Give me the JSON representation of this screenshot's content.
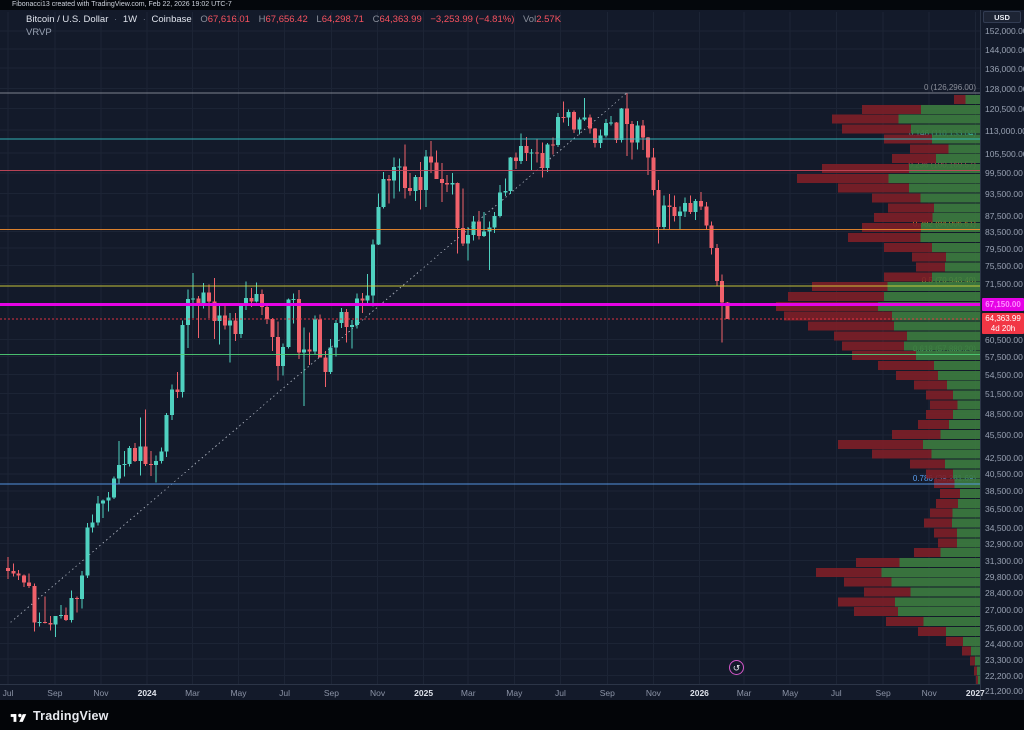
{
  "meta": {
    "title_bar": "Fibonacci13 created with TradingView.com, Feb 22, 2026 19:02 UTC-7"
  },
  "legend": {
    "symbol": "Bitcoin / U.S. Dollar",
    "separator": "·",
    "interval": "1W",
    "exchange": "Coinbase",
    "o_label": "O",
    "o": "67,616.01",
    "h_label": "H",
    "h": "67,656.42",
    "l_label": "L",
    "l": "64,298.71",
    "c_label": "C",
    "c": "64,363.99",
    "change": "−3,253.99 (−4.81%)",
    "vol_label": "Vol",
    "vol": "2.57K",
    "indicator": "VRVP"
  },
  "icons": {
    "replay_icon": "↺"
  },
  "price_axis": {
    "currency": "USD",
    "labels": [
      "152,000.00",
      "144,000.00",
      "136,000.00",
      "128,000.00",
      "120,500.00",
      "113,000.00",
      "105,500.00",
      "99,500.00",
      "93,500.00",
      "87,500.00",
      "83,500.00",
      "79,500.00",
      "75,500.00",
      "71,500.00",
      "60,500.00",
      "57,500.00",
      "54,500.00",
      "51,500.00",
      "48,500.00",
      "45,500.00",
      "42,500.00",
      "40,500.00",
      "38,500.00",
      "36,500.00",
      "34,500.00",
      "32,900.00",
      "31,300.00",
      "29,800.00",
      "28,400.00",
      "27,000.00",
      "25,600.00",
      "24,400.00",
      "23,300.00",
      "22,200.00",
      "21,200.00"
    ]
  },
  "time_axis": {
    "ticks": [
      {
        "label": "Jul",
        "week": 0,
        "year": false
      },
      {
        "label": "Sep",
        "week": 8.86,
        "year": false
      },
      {
        "label": "Nov",
        "week": 17.57,
        "year": false
      },
      {
        "label": "2024",
        "week": 26.29,
        "year": true
      },
      {
        "label": "Mar",
        "week": 34.86,
        "year": false
      },
      {
        "label": "May",
        "week": 43.57,
        "year": false
      },
      {
        "label": "Jul",
        "week": 52.29,
        "year": false
      },
      {
        "label": "Sep",
        "week": 61.14,
        "year": false
      },
      {
        "label": "Nov",
        "week": 69.86,
        "year": false
      },
      {
        "label": "2025",
        "week": 78.57,
        "year": true
      },
      {
        "label": "Mar",
        "week": 87,
        "year": false
      },
      {
        "label": "May",
        "week": 95.71,
        "year": false
      },
      {
        "label": "Jul",
        "week": 104.43,
        "year": false
      },
      {
        "label": "Sep",
        "week": 113.29,
        "year": false
      },
      {
        "label": "Nov",
        "week": 122,
        "year": false
      },
      {
        "label": "2026",
        "week": 130.71,
        "year": true
      },
      {
        "label": "Mar",
        "week": 139.14,
        "year": false
      },
      {
        "label": "May",
        "week": 147.86,
        "year": false
      },
      {
        "label": "Jul",
        "week": 156.57,
        "year": false
      },
      {
        "label": "Sep",
        "week": 165.43,
        "year": false
      },
      {
        "label": "Nov",
        "week": 174.14,
        "year": false
      },
      {
        "label": "2027",
        "week": 182.86,
        "year": true
      }
    ]
  },
  "fib_levels": [
    {
      "level": "0",
      "value": "126,296.00",
      "price": 126296,
      "color": "#8a8e99"
    },
    {
      "level": "0.146",
      "value": "110,133.04",
      "price": 110133.04,
      "color": "#35c2c5"
    },
    {
      "level": "0.236",
      "value": "100,169.57",
      "price": 100169.57,
      "color": "#c9485b"
    },
    {
      "level": "0.382",
      "value": "84,006.61",
      "price": 84006.61,
      "color": "#f08c2e"
    },
    {
      "level": "0.5",
      "value": "70,943.40",
      "price": 70943.4,
      "color": "#d9d43a"
    },
    {
      "level": "0.618",
      "value": "57,880.20",
      "price": 57880.2,
      "color": "#4fd076"
    },
    {
      "level": "0.786",
      "value": "39,281.69",
      "price": 39281.69,
      "color": "#5a9ff2"
    }
  ],
  "drawings": {
    "magenta_line": {
      "price": 67150,
      "label": "67,150.00",
      "color": "#e603e6"
    },
    "trendline": {
      "week1": 0.5,
      "price1": 26000,
      "week2": 117,
      "price2": 126296
    }
  },
  "current_price": {
    "price": 64363.99,
    "label": "64,363.99",
    "countdown": "4d 20h",
    "color": "#f23645"
  },
  "chart_data": {
    "type": "candlestick",
    "title": "Bitcoin / U.S. Dollar",
    "interval": "1W",
    "exchange": "Coinbase",
    "x_start": "2023-07-03",
    "x_step": "1 week",
    "y_scale": "log",
    "ylim": [
      21200,
      152000
    ],
    "ohlc_format": [
      "open",
      "high",
      "low",
      "close"
    ],
    "up_color": "#4fd1c0",
    "down_color": "#f0616b",
    "candles": [
      [
        30600,
        31600,
        29600,
        30300
      ],
      [
        30300,
        31000,
        29800,
        30100
      ],
      [
        30100,
        30400,
        29500,
        29900
      ],
      [
        29900,
        30000,
        28900,
        29300
      ],
      [
        29300,
        30100,
        28800,
        29000
      ],
      [
        29000,
        29200,
        25300,
        26000
      ],
      [
        26000,
        26800,
        25700,
        26050
      ],
      [
        26050,
        28100,
        25900,
        25950
      ],
      [
        25950,
        26500,
        25400,
        25850
      ],
      [
        25850,
        26400,
        24900,
        26500
      ],
      [
        26500,
        27400,
        26300,
        26600
      ],
      [
        26600,
        27200,
        26100,
        26200
      ],
      [
        26200,
        28600,
        26000,
        27950
      ],
      [
        27950,
        28100,
        26800,
        27900
      ],
      [
        27900,
        30300,
        27100,
        29900
      ],
      [
        29900,
        35000,
        29700,
        34500
      ],
      [
        34500,
        35900,
        34000,
        35050
      ],
      [
        35050,
        37900,
        34700,
        37100
      ],
      [
        37100,
        37500,
        35500,
        37400
      ],
      [
        37400,
        38400,
        36200,
        37750
      ],
      [
        37750,
        40200,
        37600,
        39950
      ],
      [
        39950,
        44700,
        39300,
        41600
      ],
      [
        41600,
        43400,
        40200,
        41700
      ],
      [
        41700,
        44000,
        41400,
        43750
      ],
      [
        43750,
        44400,
        42000,
        42100
      ],
      [
        42100,
        47900,
        40300,
        43950
      ],
      [
        43950,
        49100,
        41500,
        41700
      ],
      [
        41700,
        43400,
        40280,
        41600
      ],
      [
        41600,
        42800,
        39480,
        42120
      ],
      [
        42120,
        43800,
        41800,
        43300
      ],
      [
        43300,
        48600,
        42600,
        48300
      ],
      [
        48300,
        52900,
        47600,
        52100
      ],
      [
        52100,
        54900,
        50800,
        51700
      ],
      [
        51700,
        64000,
        50900,
        63200
      ],
      [
        63200,
        70200,
        59000,
        68300
      ],
      [
        68300,
        73800,
        64500,
        68400
      ],
      [
        68400,
        68900,
        60800,
        67200
      ],
      [
        67200,
        71600,
        66400,
        69600
      ],
      [
        69600,
        71300,
        64550,
        67800
      ],
      [
        67800,
        72700,
        60600,
        63900
      ],
      [
        63900,
        67000,
        59600,
        64950
      ],
      [
        64950,
        67200,
        62300,
        63100
      ],
      [
        63100,
        65500,
        56500,
        64000
      ],
      [
        64000,
        65500,
        60200,
        61500
      ],
      [
        61500,
        67300,
        60800,
        66900
      ],
      [
        66900,
        71900,
        66100,
        68500
      ],
      [
        68500,
        70600,
        66700,
        67800
      ],
      [
        67800,
        71700,
        67600,
        69300
      ],
      [
        69300,
        70200,
        65100,
        66700
      ],
      [
        66700,
        67200,
        63400,
        64300
      ],
      [
        64300,
        64500,
        58500,
        61000
      ],
      [
        61000,
        63800,
        53500,
        55900
      ],
      [
        55900,
        59800,
        54300,
        59200
      ],
      [
        59200,
        68400,
        58900,
        68150
      ],
      [
        68150,
        69400,
        63500,
        68300
      ],
      [
        68300,
        70100,
        57100,
        58200
      ],
      [
        58200,
        62700,
        49600,
        58700
      ],
      [
        58700,
        61800,
        56100,
        58400
      ],
      [
        58400,
        65000,
        57900,
        64200
      ],
      [
        64200,
        65200,
        57700,
        57300
      ],
      [
        57300,
        58500,
        52500,
        54900
      ],
      [
        54900,
        60600,
        54600,
        59100
      ],
      [
        59100,
        64100,
        57500,
        63600
      ],
      [
        63600,
        66500,
        62600,
        65650
      ],
      [
        65650,
        66300,
        60000,
        62800
      ],
      [
        62800,
        64100,
        58900,
        63200
      ],
      [
        63200,
        69400,
        62500,
        68400
      ],
      [
        68400,
        69500,
        65500,
        68000
      ],
      [
        68000,
        73600,
        67500,
        69000
      ],
      [
        69000,
        81500,
        66800,
        80400
      ],
      [
        80400,
        93500,
        80200,
        89900
      ],
      [
        89900,
        99800,
        89400,
        97700
      ],
      [
        97700,
        98900,
        90800,
        97300
      ],
      [
        97300,
        104100,
        92200,
        101200
      ],
      [
        101200,
        103900,
        94150,
        101400
      ],
      [
        101400,
        108300,
        92200,
        95100
      ],
      [
        95100,
        99500,
        93000,
        94300
      ],
      [
        94300,
        98800,
        91500,
        98300
      ],
      [
        98300,
        102700,
        89200,
        94500
      ],
      [
        94500,
        106500,
        89800,
        104500
      ],
      [
        104500,
        109400,
        99500,
        102600
      ],
      [
        102600,
        106300,
        97800,
        97700
      ],
      [
        97700,
        102500,
        91200,
        96500
      ],
      [
        96500,
        98900,
        94000,
        96100
      ],
      [
        96100,
        99500,
        93300,
        96600
      ],
      [
        96600,
        96700,
        78200,
        84400
      ],
      [
        84400,
        95000,
        80000,
        80600
      ],
      [
        80600,
        84700,
        76600,
        82600
      ],
      [
        82600,
        87500,
        81300,
        86100
      ],
      [
        86100,
        88800,
        81600,
        82400
      ],
      [
        82400,
        88500,
        82100,
        83500
      ],
      [
        83500,
        86100,
        74400,
        84500
      ],
      [
        84500,
        88500,
        83100,
        87500
      ],
      [
        87500,
        95900,
        87100,
        93800
      ],
      [
        93800,
        97900,
        92900,
        94300
      ],
      [
        94300,
        104300,
        93400,
        104100
      ],
      [
        104100,
        105800,
        100700,
        103100
      ],
      [
        103100,
        111900,
        102100,
        107800
      ],
      [
        107800,
        110700,
        103100,
        105600
      ],
      [
        105600,
        106800,
        100400,
        105700
      ],
      [
        105700,
        110300,
        102600,
        105500
      ],
      [
        105500,
        108900,
        98200,
        100900
      ],
      [
        100900,
        108800,
        99700,
        108300
      ],
      [
        108300,
        110500,
        105100,
        108200
      ],
      [
        108200,
        118900,
        107500,
        117500
      ],
      [
        117500,
        123200,
        115700,
        117300
      ],
      [
        117300,
        120200,
        114500,
        119400
      ],
      [
        119400,
        119800,
        112000,
        113300
      ],
      [
        113300,
        117400,
        111600,
        116600
      ],
      [
        116600,
        124500,
        116100,
        117400
      ],
      [
        117400,
        118400,
        111900,
        113500
      ],
      [
        113500,
        113800,
        107300,
        108800
      ],
      [
        108800,
        113300,
        107200,
        111200
      ],
      [
        111200,
        116800,
        110600,
        115400
      ],
      [
        115400,
        117900,
        114600,
        115700
      ],
      [
        115700,
        115800,
        108700,
        109700
      ],
      [
        109700,
        120700,
        108900,
        120500
      ],
      [
        120500,
        126296,
        104600,
        115200
      ],
      [
        115200,
        116100,
        103500,
        108900
      ],
      [
        108900,
        116100,
        106700,
        114600
      ],
      [
        114600,
        116500,
        106600,
        110600
      ],
      [
        110600,
        110700,
        98900,
        104100
      ],
      [
        104100,
        107200,
        93000,
        94500
      ],
      [
        94500,
        97400,
        80600,
        84600
      ],
      [
        84600,
        93000,
        83900,
        90300
      ],
      [
        90300,
        93400,
        84200,
        89800
      ],
      [
        89800,
        93000,
        86000,
        87500
      ],
      [
        87500,
        90000,
        84000,
        88600
      ],
      [
        88600,
        92500,
        87200,
        91000
      ],
      [
        91000,
        93000,
        88000,
        88500
      ],
      [
        88500,
        92000,
        86500,
        91500
      ],
      [
        91500,
        94000,
        89000,
        90000
      ],
      [
        90000,
        91200,
        84000,
        85000
      ],
      [
        85000,
        86000,
        78000,
        79500
      ],
      [
        79500,
        80500,
        71000,
        72000
      ],
      [
        72000,
        73500,
        60000,
        67616
      ],
      [
        67616.01,
        67656.42,
        64298.71,
        64363.99
      ]
    ]
  },
  "volume_profile": {
    "name": "VRVP",
    "up_color": "#3c7a3f",
    "down_color": "#7c1f27",
    "rows": [
      [
        26,
        0.55
      ],
      [
        118,
        0.5
      ],
      [
        148,
        0.55
      ],
      [
        138,
        0.5
      ],
      [
        96,
        0.5
      ],
      [
        70,
        0.45
      ],
      [
        88,
        0.5
      ],
      [
        158,
        0.45
      ],
      [
        183,
        0.5
      ],
      [
        142,
        0.5
      ],
      [
        108,
        0.55
      ],
      [
        92,
        0.5
      ],
      [
        106,
        0.45
      ],
      [
        118,
        0.5
      ],
      [
        132,
        0.45
      ],
      [
        96,
        0.5
      ],
      [
        68,
        0.5
      ],
      [
        64,
        0.55
      ],
      [
        96,
        0.5
      ],
      [
        168,
        0.55
      ],
      [
        192,
        0.5
      ],
      [
        204,
        0.5
      ],
      [
        196,
        0.45
      ],
      [
        172,
        0.5
      ],
      [
        146,
        0.5
      ],
      [
        138,
        0.55
      ],
      [
        128,
        0.5
      ],
      [
        102,
        0.45
      ],
      [
        84,
        0.5
      ],
      [
        66,
        0.5
      ],
      [
        54,
        0.5
      ],
      [
        50,
        0.45
      ],
      [
        54,
        0.5
      ],
      [
        62,
        0.5
      ],
      [
        88,
        0.45
      ],
      [
        142,
        0.4
      ],
      [
        108,
        0.45
      ],
      [
        70,
        0.5
      ],
      [
        54,
        0.5
      ],
      [
        46,
        0.55
      ],
      [
        40,
        0.5
      ],
      [
        44,
        0.5
      ],
      [
        50,
        0.55
      ],
      [
        56,
        0.5
      ],
      [
        46,
        0.5
      ],
      [
        42,
        0.55
      ],
      [
        66,
        0.6
      ],
      [
        124,
        0.65
      ],
      [
        164,
        0.6
      ],
      [
        136,
        0.65
      ],
      [
        116,
        0.6
      ],
      [
        142,
        0.6
      ],
      [
        126,
        0.65
      ],
      [
        94,
        0.6
      ],
      [
        62,
        0.55
      ],
      [
        34,
        0.5
      ],
      [
        18,
        0.5
      ],
      [
        10,
        0.5
      ],
      [
        6,
        0.5
      ],
      [
        4,
        0.5
      ]
    ]
  },
  "footer": {
    "logo_text": "TradingView"
  }
}
